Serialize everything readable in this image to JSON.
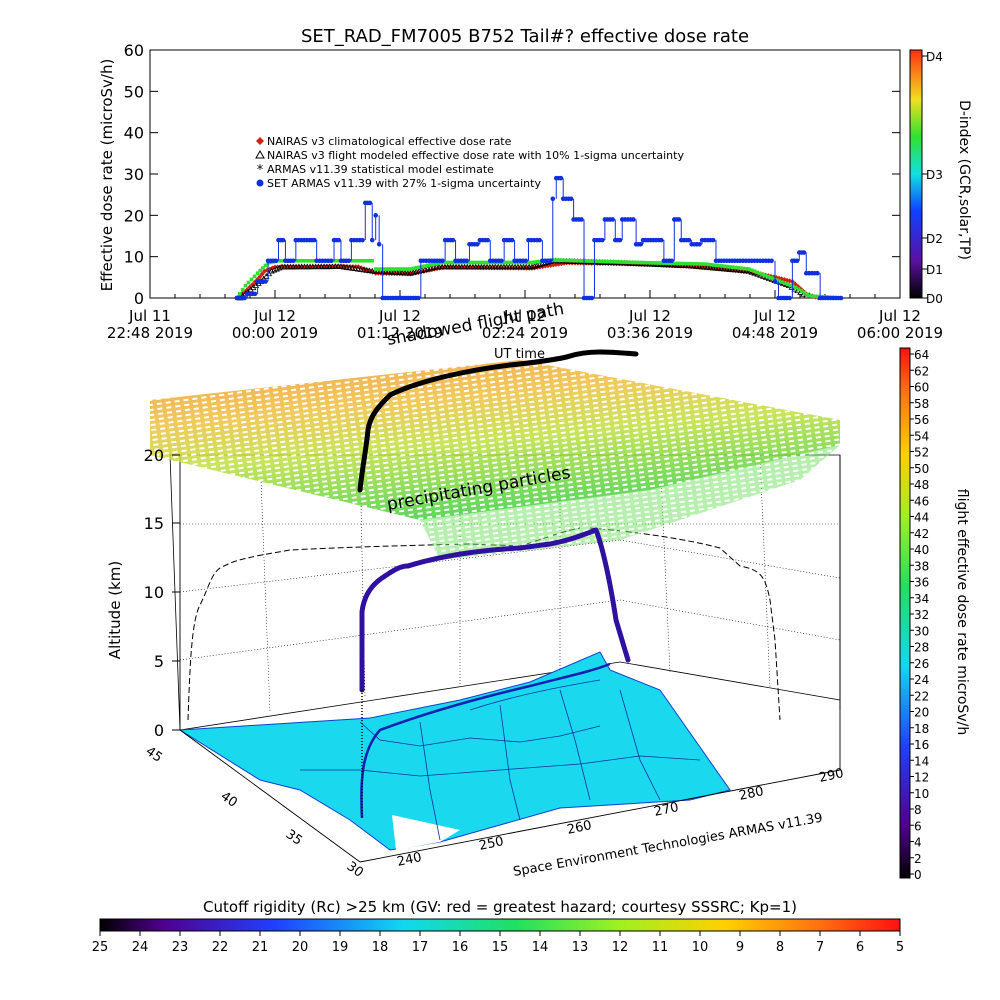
{
  "chart_data": [
    {
      "type": "scatter",
      "title": "SET_RAD_FM7005   B752 Tail#? effective dose rate",
      "ylabel": "Effective dose rate (microSv/h)",
      "ylim": [
        0,
        60
      ],
      "yticks": [
        0,
        10,
        20,
        30,
        40,
        50,
        60
      ],
      "xlim": [
        0,
        600
      ],
      "xticks": [
        {
          "t": 0,
          "l1": "Jul 11",
          "l2": "22:48 2019"
        },
        {
          "t": 72,
          "l1": "Jul 12",
          "l2": "00:00 2019"
        },
        {
          "t": 144,
          "l1": "Jul 12",
          "l2": "01:12 2019"
        },
        {
          "t": 216,
          "l1": "Jul 12",
          "l2": "02:24 2019"
        },
        {
          "t": 288,
          "l1": "Jul 12",
          "l2": "03:36 2019"
        },
        {
          "t": 360,
          "l1": "Jul 12",
          "l2": "04:48 2019"
        },
        {
          "t": 432,
          "l1": "Jul 12",
          "l2": "06:00 2019"
        }
      ],
      "xunit_note": "minutes after Jul 11 22:48 2019",
      "legend": [
        {
          "label": "NAIRAS v3 climatological effective dose rate",
          "color": "#d02010",
          "marker": "diamond"
        },
        {
          "label": "NAIRAS v3 flight modeled effective dose rate with 10% 1-sigma uncertainty",
          "color": "#000000",
          "marker": "triangle"
        },
        {
          "label": "ARMAS v11.39 statistical model estimate",
          "color": "#30e030",
          "marker": "asterisk"
        },
        {
          "label": "SET ARMAS v11.39 with 27% 1-sigma uncertainty",
          "color": "#1030e0",
          "marker": "circle"
        }
      ],
      "legend_position": "upper-left",
      "right_axis": {
        "label": "D-index (GCR,solar,TP)",
        "ticks": [
          "D0",
          "D1",
          "D2",
          "D3",
          "D4"
        ]
      },
      "series": [
        {
          "name": "NAIRAS v3 climatological effective dose rate",
          "points": [
            [
              50,
              0
            ],
            [
              56,
              2
            ],
            [
              62,
              4.5
            ],
            [
              66,
              6.5
            ],
            [
              72,
              7.5
            ],
            [
              100,
              7.6
            ],
            [
              120,
              7.6
            ],
            [
              130,
              6
            ],
            [
              150,
              5.8
            ],
            [
              170,
              7.5
            ],
            [
              200,
              7.3
            ],
            [
              220,
              7.2
            ],
            [
              240,
              8.5
            ],
            [
              280,
              8.2
            ],
            [
              320,
              7.5
            ],
            [
              350,
              6
            ],
            [
              370,
              4
            ],
            [
              378,
              1
            ],
            [
              385,
              0
            ]
          ]
        },
        {
          "name": "NAIRAS v3 flight modeled effective dose rate with 10% 1-sigma uncertainty",
          "points": [
            [
              52,
              0
            ],
            [
              58,
              2
            ],
            [
              64,
              4
            ],
            [
              70,
              6.5
            ],
            [
              76,
              7.5
            ],
            [
              110,
              7.6
            ],
            [
              128,
              6.5
            ],
            [
              150,
              6
            ],
            [
              165,
              7.5
            ],
            [
              220,
              7.5
            ],
            [
              232,
              9
            ],
            [
              270,
              8.5
            ],
            [
              310,
              7.8
            ],
            [
              345,
              6.5
            ],
            [
              368,
              3
            ],
            [
              378,
              0.5
            ]
          ]
        },
        {
          "name": "ARMAS v11.39 statistical model estimate",
          "points": [
            [
              50,
              0
            ],
            [
              55,
              3
            ],
            [
              62,
              6
            ],
            [
              68,
              8.5
            ],
            [
              74,
              9
            ],
            [
              128,
              9
            ],
            [
              130,
              7
            ],
            [
              150,
              7
            ],
            [
              168,
              8.6
            ],
            [
              220,
              8.6
            ],
            [
              232,
              9.2
            ],
            [
              280,
              8.6
            ],
            [
              320,
              8.2
            ],
            [
              345,
              7
            ],
            [
              372,
              2.5
            ],
            [
              380,
              0.5
            ],
            [
              398,
              0
            ]
          ]
        },
        {
          "name": "SET ARMAS v11.39 with 27% 1-sigma uncertainty",
          "points": [
            [
              50,
              0
            ],
            [
              56,
              1
            ],
            [
              62,
              4
            ],
            [
              68,
              9
            ],
            [
              74,
              14
            ],
            [
              78,
              9
            ],
            [
              84,
              14
            ],
            [
              92,
              14
            ],
            [
              96,
              9
            ],
            [
              106,
              14
            ],
            [
              110,
              9
            ],
            [
              116,
              14
            ],
            [
              124,
              23
            ],
            [
              128,
              14
            ],
            [
              130,
              20
            ],
            [
              132,
              13
            ],
            [
              134,
              0
            ],
            [
              140,
              0
            ],
            [
              146,
              0
            ],
            [
              150,
              0
            ],
            [
              156,
              9
            ],
            [
              170,
              14
            ],
            [
              176,
              9
            ],
            [
              184,
              13
            ],
            [
              190,
              14
            ],
            [
              196,
              9
            ],
            [
              204,
              14
            ],
            [
              210,
              9
            ],
            [
              218,
              14
            ],
            [
              226,
              9
            ],
            [
              232,
              24
            ],
            [
              234,
              29
            ],
            [
              238,
              24
            ],
            [
              244,
              19
            ],
            [
              250,
              0
            ],
            [
              256,
              14
            ],
            [
              262,
              19
            ],
            [
              268,
              14
            ],
            [
              272,
              19
            ],
            [
              280,
              13
            ],
            [
              284,
              14
            ],
            [
              290,
              14
            ],
            [
              296,
              9
            ],
            [
              302,
              19
            ],
            [
              306,
              14
            ],
            [
              312,
              13
            ],
            [
              318,
              14
            ],
            [
              326,
              9
            ],
            [
              340,
              9
            ],
            [
              358,
              9
            ],
            [
              360,
              4
            ],
            [
              362,
              0
            ],
            [
              370,
              9
            ],
            [
              374,
              11
            ],
            [
              378,
              6
            ],
            [
              386,
              0
            ],
            [
              398,
              0
            ]
          ]
        }
      ]
    },
    {
      "type": "scatter",
      "ylabel": "Altitude (km)",
      "zticks": [
        0,
        5,
        10,
        15,
        20
      ],
      "lat_ticks": [
        "45",
        "40",
        "35",
        "30"
      ],
      "lon_ticks": [
        "240",
        "250",
        "260",
        "270",
        "280",
        "290"
      ],
      "colorbar": {
        "label": "flight effective dose rate microSv/h",
        "ticks": [
          0,
          2,
          4,
          6,
          8,
          10,
          12,
          14,
          16,
          18,
          20,
          22,
          24,
          26,
          28,
          30,
          32,
          34,
          36,
          38,
          40,
          42,
          44,
          46,
          48,
          50,
          52,
          54,
          56,
          58,
          60,
          62,
          64
        ]
      },
      "annotations": [
        "shadowed flight path",
        "UT time",
        "precipitating particles",
        "Space Environment Technologies ARMAS v11.39"
      ],
      "bottom_colorbar": {
        "label": "Cutoff rigidity (Rc) >25 km (GV: red = greatest hazard; courtesy SSSRC; Kp=1)",
        "ticks": [
          25,
          24,
          23,
          22,
          21,
          20,
          19,
          18,
          17,
          16,
          15,
          14,
          13,
          12,
          11,
          10,
          9,
          8,
          7,
          6,
          5
        ]
      }
    }
  ]
}
